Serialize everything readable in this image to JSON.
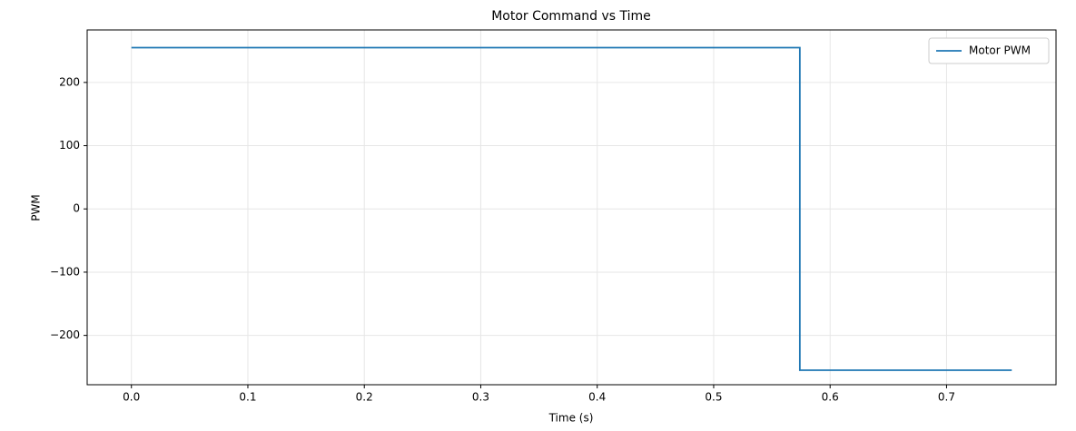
{
  "chart_data": {
    "type": "line",
    "title": "Motor Command vs Time",
    "x_label": "Time (s)",
    "y_label": "PWM",
    "x": [
      0,
      0.574,
      0.574,
      0.756
    ],
    "series": [
      {
        "name": "Motor PWM",
        "color": "#1f77b4",
        "values": [
          255,
          255,
          -255,
          -255
        ]
      }
    ],
    "xlim": [
      -0.038,
      0.794
    ],
    "ylim": [
      -278,
      283
    ],
    "xticks": [
      {
        "value": 0,
        "label": "0.0"
      },
      0.1,
      0.2,
      0.3,
      0.4,
      0.5,
      0.6,
      0.7
    ],
    "yticks": [
      {
        "value": -200,
        "label": "−200"
      },
      {
        "value": -100,
        "label": "−100"
      },
      0,
      100,
      200
    ],
    "grid": true,
    "legend": "upper right"
  }
}
